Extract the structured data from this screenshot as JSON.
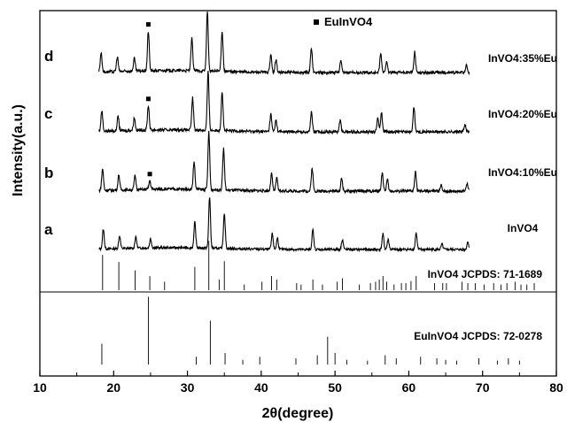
{
  "chart_data": {
    "type": "line",
    "xlabel": "2θ(degree)",
    "ylabel": "Intensity(a.u.)",
    "xlim": [
      10,
      80
    ],
    "x_ticks": [
      "10",
      "20",
      "30",
      "40",
      "50",
      "60",
      "70",
      "80"
    ],
    "grid": false,
    "legend": {
      "marker": "square",
      "label": "EuInVO4",
      "placement": "top-center"
    },
    "series": [
      {
        "letter": "a",
        "sample": "InVO4",
        "peaks": [
          [
            18.6,
            0.38
          ],
          [
            20.8,
            0.25
          ],
          [
            23.0,
            0.22
          ],
          [
            25.0,
            0.18
          ],
          [
            31.0,
            0.5
          ],
          [
            33.0,
            1.0
          ],
          [
            35.0,
            0.7
          ],
          [
            41.5,
            0.3
          ],
          [
            42.2,
            0.22
          ],
          [
            47.0,
            0.38
          ],
          [
            51.0,
            0.2
          ],
          [
            56.5,
            0.3
          ],
          [
            57.2,
            0.2
          ],
          [
            61.0,
            0.32
          ],
          [
            64.5,
            0.1
          ],
          [
            68.0,
            0.15
          ]
        ]
      },
      {
        "letter": "b",
        "sample": "InVO4:10%Eu",
        "peaks": [
          [
            18.5,
            0.38
          ],
          [
            20.7,
            0.27
          ],
          [
            22.9,
            0.24
          ],
          [
            24.9,
            0.15
          ],
          [
            30.9,
            0.48
          ],
          [
            32.9,
            1.0
          ],
          [
            34.9,
            0.72
          ],
          [
            41.4,
            0.3
          ],
          [
            42.1,
            0.22
          ],
          [
            46.9,
            0.4
          ],
          [
            50.9,
            0.22
          ],
          [
            56.4,
            0.32
          ],
          [
            57.1,
            0.2
          ],
          [
            60.9,
            0.33
          ],
          [
            64.4,
            0.1
          ],
          [
            67.9,
            0.14
          ]
        ]
      },
      {
        "letter": "c",
        "sample": "InVO4:20%Eu",
        "peaks": [
          [
            18.4,
            0.35
          ],
          [
            20.6,
            0.25
          ],
          [
            22.8,
            0.22
          ],
          [
            24.7,
            0.42
          ],
          [
            30.7,
            0.55
          ],
          [
            32.8,
            1.0
          ],
          [
            34.7,
            0.68
          ],
          [
            41.3,
            0.3
          ],
          [
            42.0,
            0.2
          ],
          [
            46.8,
            0.35
          ],
          [
            50.7,
            0.2
          ],
          [
            55.8,
            0.25
          ],
          [
            56.3,
            0.34
          ],
          [
            60.7,
            0.42
          ],
          [
            67.6,
            0.12
          ]
        ]
      },
      {
        "letter": "d",
        "sample": "InVO4:35%Eu",
        "peaks": [
          [
            18.3,
            0.33
          ],
          [
            20.5,
            0.25
          ],
          [
            22.8,
            0.22
          ],
          [
            24.7,
            0.68
          ],
          [
            30.6,
            0.55
          ],
          [
            32.7,
            1.0
          ],
          [
            34.7,
            0.7
          ],
          [
            41.3,
            0.3
          ],
          [
            42.0,
            0.22
          ],
          [
            46.8,
            0.42
          ],
          [
            50.8,
            0.22
          ],
          [
            56.2,
            0.32
          ],
          [
            57.0,
            0.2
          ],
          [
            60.8,
            0.35
          ],
          [
            67.8,
            0.12
          ]
        ]
      }
    ],
    "reference_patterns": [
      {
        "label": "InVO4  JCPDS: 71-1689",
        "lines": [
          [
            18.5,
            0.5
          ],
          [
            20.7,
            0.4
          ],
          [
            22.9,
            0.28
          ],
          [
            24.9,
            0.2
          ],
          [
            26.9,
            0.12
          ],
          [
            31.0,
            0.33
          ],
          [
            32.9,
            0.7
          ],
          [
            34.3,
            0.15
          ],
          [
            35.0,
            0.41
          ],
          [
            37.7,
            0.08
          ],
          [
            40.1,
            0.12
          ],
          [
            41.4,
            0.2
          ],
          [
            42.1,
            0.15
          ],
          [
            44.8,
            0.1
          ],
          [
            45.4,
            0.08
          ],
          [
            47.0,
            0.15
          ],
          [
            48.3,
            0.08
          ],
          [
            50.3,
            0.12
          ],
          [
            51.0,
            0.17
          ],
          [
            53.3,
            0.08
          ],
          [
            54.8,
            0.1
          ],
          [
            55.5,
            0.12
          ],
          [
            56.0,
            0.15
          ],
          [
            56.5,
            0.2
          ],
          [
            57.0,
            0.12
          ],
          [
            58.0,
            0.08
          ],
          [
            59.0,
            0.1
          ],
          [
            59.6,
            0.1
          ],
          [
            60.3,
            0.13
          ],
          [
            61.0,
            0.2
          ],
          [
            63.5,
            0.1
          ],
          [
            64.6,
            0.1
          ],
          [
            65.1,
            0.1
          ],
          [
            67.2,
            0.12
          ],
          [
            68.0,
            0.1
          ],
          [
            69.0,
            0.1
          ],
          [
            70.2,
            0.08
          ],
          [
            71.5,
            0.1
          ],
          [
            72.5,
            0.08
          ],
          [
            73.3,
            0.1
          ],
          [
            74.4,
            0.12
          ],
          [
            75.2,
            0.08
          ],
          [
            76.0,
            0.08
          ],
          [
            77.0,
            0.1
          ]
        ]
      },
      {
        "label": "EuInVO4  JCPDS: 72-0278",
        "lines": [
          [
            18.4,
            0.27
          ],
          [
            24.7,
            0.88
          ],
          [
            31.2,
            0.1
          ],
          [
            33.1,
            0.57
          ],
          [
            35.1,
            0.15
          ],
          [
            37.5,
            0.06
          ],
          [
            39.8,
            0.1
          ],
          [
            44.7,
            0.08
          ],
          [
            47.6,
            0.12
          ],
          [
            49.0,
            0.36
          ],
          [
            50.0,
            0.15
          ],
          [
            51.6,
            0.06
          ],
          [
            54.4,
            0.05
          ],
          [
            56.8,
            0.12
          ],
          [
            58.3,
            0.08
          ],
          [
            61.6,
            0.1
          ],
          [
            63.8,
            0.08
          ],
          [
            65.0,
            0.06
          ],
          [
            66.5,
            0.05
          ],
          [
            69.5,
            0.08
          ],
          [
            72.0,
            0.05
          ],
          [
            73.5,
            0.08
          ],
          [
            75.0,
            0.05
          ]
        ]
      }
    ],
    "eu_markers": [
      {
        "series": "b",
        "x": 24.9
      },
      {
        "series": "c",
        "x": 24.7
      },
      {
        "series": "d",
        "x": 24.7
      }
    ]
  }
}
